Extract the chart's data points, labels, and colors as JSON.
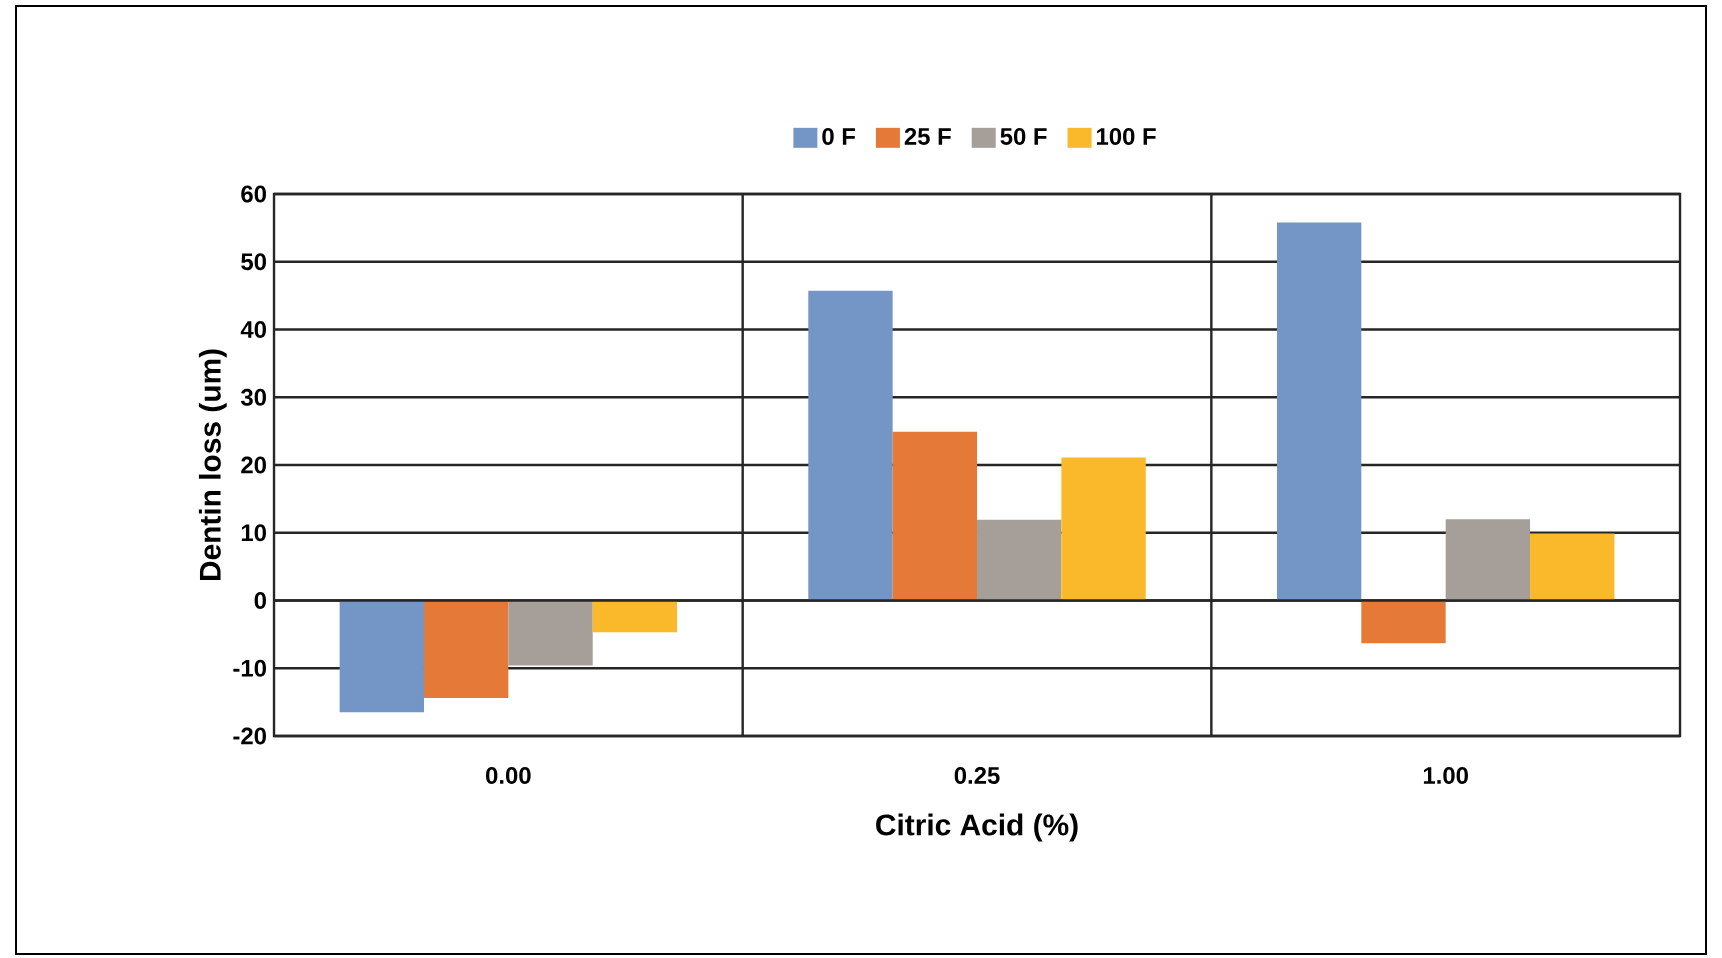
{
  "chart_data": {
    "type": "bar",
    "xlabel": "Citric Acid (%)",
    "ylabel": "Dentin loss (um)",
    "categories": [
      "0.00",
      "0.25",
      "1.00"
    ],
    "series": [
      {
        "name": "0 F",
        "color": "#7396c6",
        "values": [
          -16.5,
          45.7,
          55.8
        ]
      },
      {
        "name": "25 F",
        "color": "#e57a38",
        "values": [
          -14.4,
          24.9,
          -6.3
        ]
      },
      {
        "name": "50 F",
        "color": "#a69e99",
        "values": [
          -9.6,
          11.9,
          12
        ]
      },
      {
        "name": "100 F",
        "color": "#f9b92b",
        "values": [
          -4.7,
          21.1,
          9.9
        ]
      }
    ],
    "ylim": [
      -20,
      60
    ],
    "yticks": [
      -20,
      -10,
      0,
      10,
      20,
      30,
      40,
      50,
      60
    ],
    "grid": true,
    "legend": "top"
  }
}
